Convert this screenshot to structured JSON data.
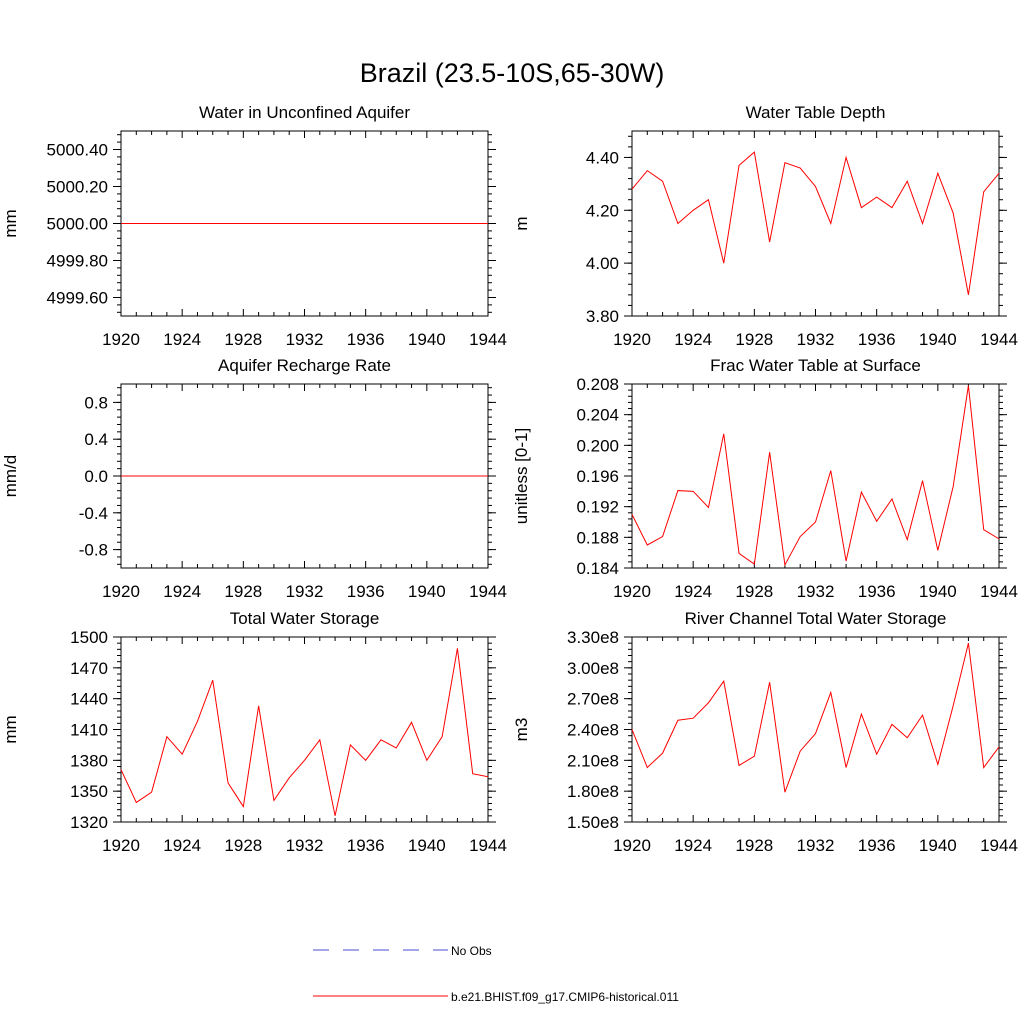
{
  "figure": {
    "title": "Brazil (23.5-10S,65-30W)"
  },
  "legend": {
    "entries": [
      {
        "label": "No Obs",
        "color": "#4b4bd6",
        "style": "dashed"
      },
      {
        "label": "b.e21.BHIST.f09_g17.CMIP6-historical.011",
        "color": "#ff0000",
        "style": "solid"
      }
    ]
  },
  "chart_data": [
    {
      "type": "line",
      "title": "Water in Unconfined Aquifer",
      "xlabel": "",
      "ylabel": "mm",
      "xlim": [
        1920,
        1944
      ],
      "ylim": [
        4999.5,
        5000.5
      ],
      "xticks": [
        "1920",
        "1924",
        "1928",
        "1932",
        "1936",
        "1940",
        "1944"
      ],
      "yticks": [
        {
          "value": 4999.6,
          "label": "4999.60"
        },
        {
          "value": 4999.8,
          "label": "4999.80"
        },
        {
          "value": 5000.0,
          "label": "5000.00"
        },
        {
          "value": 5000.2,
          "label": "5000.20"
        },
        {
          "value": 5000.4,
          "label": "5000.40"
        }
      ],
      "series": [
        {
          "name": "b.e21.BHIST.f09_g17.CMIP6-historical.011",
          "color": "#ff0000",
          "x": [
            1920,
            1944
          ],
          "values": [
            5000.0,
            5000.0
          ]
        }
      ]
    },
    {
      "type": "line",
      "title": "Water Table Depth",
      "xlabel": "",
      "ylabel": "m",
      "xlim": [
        1920,
        1944
      ],
      "ylim": [
        3.8,
        4.5
      ],
      "xticks": [
        "1920",
        "1924",
        "1928",
        "1932",
        "1936",
        "1940",
        "1944"
      ],
      "yticks": [
        {
          "value": 3.8,
          "label": "3.80"
        },
        {
          "value": 4.0,
          "label": "4.00"
        },
        {
          "value": 4.2,
          "label": "4.20"
        },
        {
          "value": 4.4,
          "label": "4.40"
        }
      ],
      "series": [
        {
          "name": "b.e21.BHIST.f09_g17.CMIP6-historical.011",
          "color": "#ff0000",
          "x": [
            1920,
            1921,
            1922,
            1923,
            1924,
            1925,
            1926,
            1927,
            1928,
            1929,
            1930,
            1931,
            1932,
            1933,
            1934,
            1935,
            1936,
            1937,
            1938,
            1939,
            1940,
            1941,
            1942,
            1943,
            1944
          ],
          "values": [
            4.28,
            4.35,
            4.31,
            4.15,
            4.2,
            4.24,
            4.0,
            4.37,
            4.42,
            4.08,
            4.38,
            4.36,
            4.29,
            4.15,
            4.4,
            4.21,
            4.25,
            4.21,
            4.31,
            4.15,
            4.34,
            4.19,
            3.88,
            4.27,
            4.34
          ]
        }
      ]
    },
    {
      "type": "line",
      "title": "Aquifer Recharge Rate",
      "xlabel": "",
      "ylabel": "mm/d",
      "xlim": [
        1920,
        1944
      ],
      "ylim": [
        -1.0,
        1.0
      ],
      "xticks": [
        "1920",
        "1924",
        "1928",
        "1932",
        "1936",
        "1940",
        "1944"
      ],
      "yticks": [
        {
          "value": -0.8,
          "label": "-0.8"
        },
        {
          "value": -0.4,
          "label": "-0.4"
        },
        {
          "value": 0.0,
          "label": "0.0"
        },
        {
          "value": 0.4,
          "label": "0.4"
        },
        {
          "value": 0.8,
          "label": "0.8"
        }
      ],
      "series": [
        {
          "name": "b.e21.BHIST.f09_g17.CMIP6-historical.011",
          "color": "#ff0000",
          "x": [
            1920,
            1944
          ],
          "values": [
            0.0,
            0.0
          ]
        }
      ]
    },
    {
      "type": "line",
      "title": "Frac Water Table at Surface",
      "xlabel": "",
      "ylabel": "unitless [0-1]",
      "xlim": [
        1920,
        1944
      ],
      "ylim": [
        0.184,
        0.208
      ],
      "xticks": [
        "1920",
        "1924",
        "1928",
        "1932",
        "1936",
        "1940",
        "1944"
      ],
      "yticks": [
        {
          "value": 0.184,
          "label": "0.184"
        },
        {
          "value": 0.188,
          "label": "0.188"
        },
        {
          "value": 0.192,
          "label": "0.192"
        },
        {
          "value": 0.196,
          "label": "0.196"
        },
        {
          "value": 0.2,
          "label": "0.200"
        },
        {
          "value": 0.204,
          "label": "0.204"
        },
        {
          "value": 0.208,
          "label": "0.208"
        }
      ],
      "series": [
        {
          "name": "b.e21.BHIST.f09_g17.CMIP6-historical.011",
          "color": "#ff0000",
          "x": [
            1920,
            1921,
            1922,
            1923,
            1924,
            1925,
            1926,
            1927,
            1928,
            1929,
            1930,
            1931,
            1932,
            1933,
            1934,
            1935,
            1936,
            1937,
            1938,
            1939,
            1940,
            1941,
            1942,
            1943,
            1944
          ],
          "values": [
            0.191,
            0.187,
            0.1881,
            0.1941,
            0.194,
            0.1919,
            0.2015,
            0.1859,
            0.1845,
            0.1991,
            0.1844,
            0.1881,
            0.19,
            0.1967,
            0.1849,
            0.1939,
            0.1901,
            0.193,
            0.1877,
            0.1954,
            0.1863,
            0.1946,
            0.2078,
            0.189,
            0.1878
          ]
        }
      ]
    },
    {
      "type": "line",
      "title": "Total Water Storage",
      "xlabel": "",
      "ylabel": "mm",
      "xlim": [
        1920,
        1944
      ],
      "ylim": [
        1320,
        1500
      ],
      "xticks": [
        "1920",
        "1924",
        "1928",
        "1932",
        "1936",
        "1940",
        "1944"
      ],
      "yticks": [
        {
          "value": 1320,
          "label": "1320"
        },
        {
          "value": 1350,
          "label": "1350"
        },
        {
          "value": 1380,
          "label": "1380"
        },
        {
          "value": 1410,
          "label": "1410"
        },
        {
          "value": 1440,
          "label": "1440"
        },
        {
          "value": 1470,
          "label": "1470"
        },
        {
          "value": 1500,
          "label": "1500"
        }
      ],
      "series": [
        {
          "name": "b.e21.BHIST.f09_g17.CMIP6-historical.011",
          "color": "#ff0000",
          "x": [
            1920,
            1921,
            1922,
            1923,
            1924,
            1925,
            1926,
            1927,
            1928,
            1929,
            1930,
            1931,
            1932,
            1933,
            1934,
            1935,
            1936,
            1937,
            1938,
            1939,
            1940,
            1941,
            1942,
            1943,
            1944
          ],
          "values": [
            1371,
            1339,
            1349,
            1403,
            1386,
            1418,
            1458,
            1358,
            1335,
            1433,
            1341,
            1363,
            1380,
            1400,
            1326,
            1395,
            1380,
            1400,
            1392,
            1417,
            1380,
            1403,
            1489,
            1367,
            1364
          ]
        }
      ]
    },
    {
      "type": "line",
      "title": "River Channel Total Water Storage",
      "xlabel": "",
      "ylabel": "m3",
      "xlim": [
        1920,
        1944
      ],
      "ylim": [
        150000000,
        330000000
      ],
      "xticks": [
        "1920",
        "1924",
        "1928",
        "1932",
        "1936",
        "1940",
        "1944"
      ],
      "yticks": [
        {
          "value": 150000000,
          "label": "1.50e8"
        },
        {
          "value": 180000000,
          "label": "1.80e8"
        },
        {
          "value": 210000000,
          "label": "2.10e8"
        },
        {
          "value": 240000000,
          "label": "2.40e8"
        },
        {
          "value": 270000000,
          "label": "2.70e8"
        },
        {
          "value": 300000000,
          "label": "3.00e8"
        },
        {
          "value": 330000000,
          "label": "3.30e8"
        }
      ],
      "series": [
        {
          "name": "b.e21.BHIST.f09_g17.CMIP6-historical.011",
          "color": "#ff0000",
          "x": [
            1920,
            1921,
            1922,
            1923,
            1924,
            1925,
            1926,
            1927,
            1928,
            1929,
            1930,
            1931,
            1932,
            1933,
            1934,
            1935,
            1936,
            1937,
            1938,
            1939,
            1940,
            1941,
            1942,
            1943,
            1944
          ],
          "values": [
            240000000,
            203000000,
            217000000,
            249000000,
            251000000,
            266000000,
            287000000,
            205000000,
            214000000,
            286000000,
            179000000,
            219000000,
            236000000,
            276000000,
            203000000,
            255000000,
            216000000,
            245000000,
            232000000,
            254000000,
            206000000,
            263000000,
            324000000,
            203000000,
            223000000
          ]
        }
      ]
    }
  ]
}
